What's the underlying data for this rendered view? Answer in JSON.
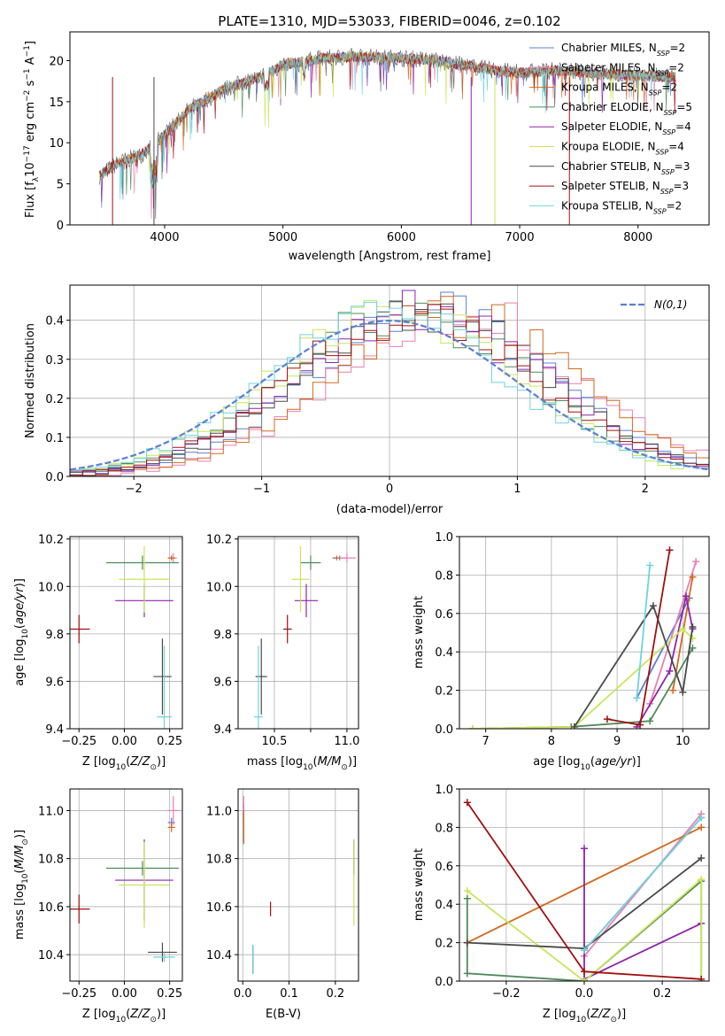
{
  "series_styles": [
    {
      "name": "Chabrier MILES",
      "nssp": "2",
      "color": "#5b7fd6"
    },
    {
      "name": "Salpeter MILES",
      "nssp": "2",
      "color": "#e87fb0"
    },
    {
      "name": "Kroupa MILES",
      "nssp": "2",
      "color": "#d2691e"
    },
    {
      "name": "Chabrier ELODIE",
      "nssp": "5",
      "color": "#4e8a5a"
    },
    {
      "name": "Salpeter ELODIE",
      "nssp": "4",
      "color": "#8e24aa"
    },
    {
      "name": "Kroupa ELODIE",
      "nssp": "4",
      "color": "#c8e65a"
    },
    {
      "name": "Chabrier STELIB",
      "nssp": "3",
      "color": "#4a4a4a"
    },
    {
      "name": "Salpeter STELIB",
      "nssp": "3",
      "color": "#a01010"
    },
    {
      "name": "Kroupa STELIB",
      "nssp": "2",
      "color": "#6fd3dd"
    }
  ],
  "chart_data": [
    {
      "id": "spectrum",
      "type": "line",
      "title": "PLATE=1310, MJD=53033, FIBERID=0046, z=0.102",
      "xlabel": "wavelength [Angstrom, rest frame]",
      "ylabel": "Flux [f$_\\lambda$10$^{-17}$ erg cm$^{-2}$ s$^{-1}$ A$^{-1}$]",
      "xlim": [
        3200,
        8600
      ],
      "ylim": [
        0,
        23.5
      ],
      "xticks": [
        4000,
        5000,
        6000,
        7000,
        8000
      ],
      "yticks": [
        0,
        5,
        10,
        15,
        20
      ],
      "legend": "top-right",
      "continuum": [
        [
          3450,
          6.0
        ],
        [
          3600,
          7.5
        ],
        [
          3800,
          8.5
        ],
        [
          4000,
          11.0
        ],
        [
          4200,
          14.0
        ],
        [
          4500,
          16.5
        ],
        [
          4800,
          18.0
        ],
        [
          5000,
          19.5
        ],
        [
          5300,
          20.2
        ],
        [
          5600,
          20.5
        ],
        [
          6000,
          20.3
        ],
        [
          6300,
          20.0
        ],
        [
          6500,
          19.5
        ],
        [
          6800,
          18.8
        ],
        [
          7000,
          18.5
        ],
        [
          7300,
          18.8
        ],
        [
          7600,
          18.5
        ],
        [
          8000,
          18.2
        ],
        [
          8300,
          18.0
        ]
      ]
    },
    {
      "id": "residuals",
      "type": "histogram",
      "xlabel": "(data-model)/error",
      "ylabel": "Normed distribution",
      "xlim": [
        -2.5,
        2.5
      ],
      "ylim": [
        0,
        0.49
      ],
      "xticks": [
        -2,
        -1,
        0,
        1,
        2
      ],
      "yticks": [
        0.0,
        0.1,
        0.2,
        0.3,
        0.4
      ],
      "grid": true,
      "legend": "top-right",
      "reference": {
        "label": "N(0,1)",
        "mean": 0,
        "sigma": 1,
        "color": "#5b7fd6"
      }
    },
    {
      "id": "age-vs-Z",
      "type": "errorbar",
      "xlabel": "Z [log10(Z/Z⊙)]",
      "ylabel": "age [log10(age/yr)]",
      "xlim": [
        -0.3,
        0.32
      ],
      "ylim": [
        9.4,
        10.21
      ],
      "xticks": [
        -0.25,
        0.0,
        0.25
      ],
      "yticks": [
        9.4,
        9.6,
        9.8,
        10.0,
        10.2
      ],
      "grid": true,
      "points": [
        {
          "s": 0,
          "x": 0.26,
          "y": 10.12,
          "xerr": 0.02,
          "yerr": 0.01
        },
        {
          "s": 1,
          "x": 0.27,
          "y": 10.12,
          "xerr": 0.02,
          "yerr": 0.02
        },
        {
          "s": 2,
          "x": 0.26,
          "y": 10.12,
          "xerr": 0.02,
          "yerr": 0.01
        },
        {
          "s": 3,
          "x": 0.1,
          "y": 10.1,
          "xerr": 0.2,
          "yerr": 0.03
        },
        {
          "s": 4,
          "x": 0.11,
          "y": 9.94,
          "xerr": 0.16,
          "yerr": 0.07
        },
        {
          "s": 5,
          "x": 0.11,
          "y": 10.03,
          "xerr": 0.14,
          "yerr": 0.14
        },
        {
          "s": 6,
          "x": 0.21,
          "y": 9.62,
          "xerr": 0.05,
          "yerr": 0.16
        },
        {
          "s": 7,
          "x": -0.25,
          "y": 9.82,
          "xerr": 0.06,
          "yerr": 0.06
        },
        {
          "s": 8,
          "x": 0.22,
          "y": 9.45,
          "xerr": 0.04,
          "yerr": 0.3
        }
      ]
    },
    {
      "id": "age-vs-mass",
      "type": "errorbar",
      "xlabel": "mass [log10(M/M⊙)]",
      "ylabel": "",
      "xlim": [
        10.25,
        11.08
      ],
      "ylim": [
        9.4,
        10.21
      ],
      "xticks": [
        10.5,
        10.75,
        11.0
      ],
      "xticklabels": [
        "10.5",
        "",
        "11.0"
      ],
      "yticks": [
        9.4,
        9.6,
        9.8,
        10.0,
        10.2
      ],
      "grid": true,
      "points": [
        {
          "s": 0,
          "x": 10.95,
          "y": 10.12,
          "xerr": 0.05,
          "yerr": 0.01
        },
        {
          "s": 1,
          "x": 11.0,
          "y": 10.12,
          "xerr": 0.06,
          "yerr": 0.02
        },
        {
          "s": 2,
          "x": 10.93,
          "y": 10.12,
          "xerr": 0.02,
          "yerr": 0.01
        },
        {
          "s": 3,
          "x": 10.75,
          "y": 10.1,
          "xerr": 0.07,
          "yerr": 0.03
        },
        {
          "s": 4,
          "x": 10.72,
          "y": 9.94,
          "xerr": 0.08,
          "yerr": 0.07
        },
        {
          "s": 5,
          "x": 10.68,
          "y": 10.03,
          "xerr": 0.06,
          "yerr": 0.14
        },
        {
          "s": 6,
          "x": 10.41,
          "y": 9.62,
          "xerr": 0.04,
          "yerr": 0.16
        },
        {
          "s": 7,
          "x": 10.59,
          "y": 9.82,
          "xerr": 0.03,
          "yerr": 0.06
        },
        {
          "s": 8,
          "x": 10.39,
          "y": 9.45,
          "xerr": 0.03,
          "yerr": 0.3
        }
      ]
    },
    {
      "id": "mass-weight-vs-age",
      "type": "line",
      "xlabel": "age [log10(age/yr)]",
      "ylabel": "mass weight",
      "xlim": [
        6.6,
        10.4
      ],
      "ylim": [
        0,
        1.0
      ],
      "xticks": [
        7,
        8,
        9,
        10
      ],
      "yticks": [
        0.0,
        0.2,
        0.4,
        0.6,
        0.8,
        1.0
      ],
      "grid": true,
      "series": [
        {
          "s": 0,
          "x": [
            9.3,
            10.1
          ],
          "y": [
            0.16,
            0.68
          ]
        },
        {
          "s": 1,
          "x": [
            9.5,
            10.2
          ],
          "y": [
            0.13,
            0.87
          ]
        },
        {
          "s": 2,
          "x": [
            9.85,
            10.15
          ],
          "y": [
            0.2,
            0.79
          ]
        },
        {
          "s": 3,
          "x": [
            6.8,
            8.3,
            9.5,
            10.15
          ],
          "y": [
            0.0,
            0.01,
            0.04,
            0.42
          ]
        },
        {
          "s": 4,
          "x": [
            9.3,
            9.8,
            10.05,
            10.15
          ],
          "y": [
            0.01,
            0.3,
            0.69,
            0.52
          ]
        },
        {
          "s": 5,
          "x": [
            6.8,
            8.35,
            10.0,
            10.15
          ],
          "y": [
            0.0,
            0.01,
            0.52,
            0.47
          ]
        },
        {
          "s": 6,
          "x": [
            8.35,
            9.55,
            10.0,
            10.15
          ],
          "y": [
            0.01,
            0.64,
            0.19,
            0.53
          ]
        },
        {
          "s": 7,
          "x": [
            8.85,
            9.35,
            9.8
          ],
          "y": [
            0.05,
            0.02,
            0.93
          ]
        },
        {
          "s": 8,
          "x": [
            9.3,
            9.5
          ],
          "y": [
            0.16,
            0.85
          ]
        }
      ]
    },
    {
      "id": "mass-vs-Z",
      "type": "errorbar",
      "xlabel": "Z [log10(Z/Z⊙)]",
      "ylabel": "mass [log10(M/M⊙)]",
      "xlim": [
        -0.3,
        0.32
      ],
      "ylim": [
        10.29,
        11.09
      ],
      "xticks": [
        -0.25,
        0.0,
        0.25
      ],
      "yticks": [
        10.4,
        10.6,
        10.8,
        11.0
      ],
      "grid": true,
      "points": [
        {
          "s": 0,
          "x": 0.26,
          "y": 10.95,
          "xerr": 0.02,
          "yerr": 0.02
        },
        {
          "s": 1,
          "x": 0.27,
          "y": 11.0,
          "xerr": 0.03,
          "yerr": 0.06
        },
        {
          "s": 2,
          "x": 0.26,
          "y": 10.93,
          "xerr": 0.02,
          "yerr": 0.02
        },
        {
          "s": 3,
          "x": 0.1,
          "y": 10.76,
          "xerr": 0.2,
          "yerr": 0.03
        },
        {
          "s": 4,
          "x": 0.11,
          "y": 10.71,
          "xerr": 0.16,
          "yerr": 0.17
        },
        {
          "s": 5,
          "x": 0.11,
          "y": 10.69,
          "xerr": 0.14,
          "yerr": 0.18
        },
        {
          "s": 6,
          "x": 0.21,
          "y": 10.41,
          "xerr": 0.08,
          "yerr": 0.04
        },
        {
          "s": 7,
          "x": -0.25,
          "y": 10.59,
          "xerr": 0.06,
          "yerr": 0.06
        },
        {
          "s": 8,
          "x": 0.22,
          "y": 10.39,
          "xerr": 0.06,
          "yerr": 0.02
        }
      ]
    },
    {
      "id": "mass-vs-EBV",
      "type": "errorbar",
      "xlabel": "E(B-V)",
      "ylabel": "",
      "xlim": [
        -0.01,
        0.25
      ],
      "ylim": [
        10.29,
        11.09
      ],
      "xticks": [
        0.0,
        0.1,
        0.2
      ],
      "yticks": [
        10.4,
        10.6,
        10.8,
        11.0
      ],
      "grid": true,
      "points": [
        {
          "s": 0,
          "x": 0.002,
          "y": 10.95,
          "xerr": 0.0,
          "yerr": 0.08
        },
        {
          "s": 1,
          "x": 0.002,
          "y": 11.0,
          "xerr": 0.0,
          "yerr": 0.06
        },
        {
          "s": 2,
          "x": 0.002,
          "y": 10.93,
          "xerr": 0.0,
          "yerr": 0.07
        },
        {
          "s": 3,
          "x": 0.24,
          "y": 10.76,
          "xerr": 0.0,
          "yerr": 0.03
        },
        {
          "s": 4,
          "x": 0.24,
          "y": 10.81,
          "xerr": 0.0,
          "yerr": 0.07
        },
        {
          "s": 5,
          "x": 0.24,
          "y": 10.7,
          "xerr": 0.0,
          "yerr": 0.18
        },
        {
          "s": 6,
          "x": 0.022,
          "y": 10.38,
          "xerr": 0.0,
          "yerr": 0.06
        },
        {
          "s": 7,
          "x": 0.06,
          "y": 10.59,
          "xerr": 0.0,
          "yerr": 0.03
        },
        {
          "s": 8,
          "x": 0.022,
          "y": 10.38,
          "xerr": 0.0,
          "yerr": 0.06
        }
      ]
    },
    {
      "id": "mass-weight-vs-Z",
      "type": "line",
      "xlabel": "Z [log10(Z/Z⊙)]",
      "ylabel": "mass weight",
      "xlim": [
        -0.32,
        0.32
      ],
      "ylim": [
        0,
        1.0
      ],
      "xticks": [
        -0.2,
        0.0,
        0.2
      ],
      "yticks": [
        0.0,
        0.2,
        0.4,
        0.6,
        0.8,
        1.0
      ],
      "grid": true,
      "series": [
        {
          "s": 0,
          "x": [
            0.0,
            0.3
          ],
          "y": [
            0.16,
            0.85
          ]
        },
        {
          "s": 1,
          "x": [
            0.0,
            0.3
          ],
          "y": [
            0.13,
            0.87
          ]
        },
        {
          "s": 2,
          "x": [
            -0.3,
            0.3
          ],
          "y": [
            0.2,
            0.8
          ]
        },
        {
          "s": 3,
          "x": [
            -0.3,
            -0.3,
            0.0,
            0.3,
            0.3
          ],
          "y": [
            0.43,
            0.04,
            0.0,
            0.52,
            0.0
          ]
        },
        {
          "s": 4,
          "x": [
            0.0,
            0.0,
            0.0,
            0.3
          ],
          "y": [
            0.69,
            0.0,
            0.01,
            0.3
          ]
        },
        {
          "s": 5,
          "x": [
            -0.3,
            0.0,
            0.3,
            0.3
          ],
          "y": [
            0.47,
            0.0,
            0.53,
            0.0
          ]
        },
        {
          "s": 6,
          "x": [
            -0.3,
            0.0,
            0.3
          ],
          "y": [
            0.2,
            0.17,
            0.64
          ]
        },
        {
          "s": 7,
          "x": [
            -0.3,
            0.0,
            0.3
          ],
          "y": [
            0.93,
            0.05,
            0.01
          ]
        },
        {
          "s": 8,
          "x": [
            0.0,
            0.3
          ],
          "y": [
            0.16,
            0.85
          ]
        }
      ]
    }
  ]
}
